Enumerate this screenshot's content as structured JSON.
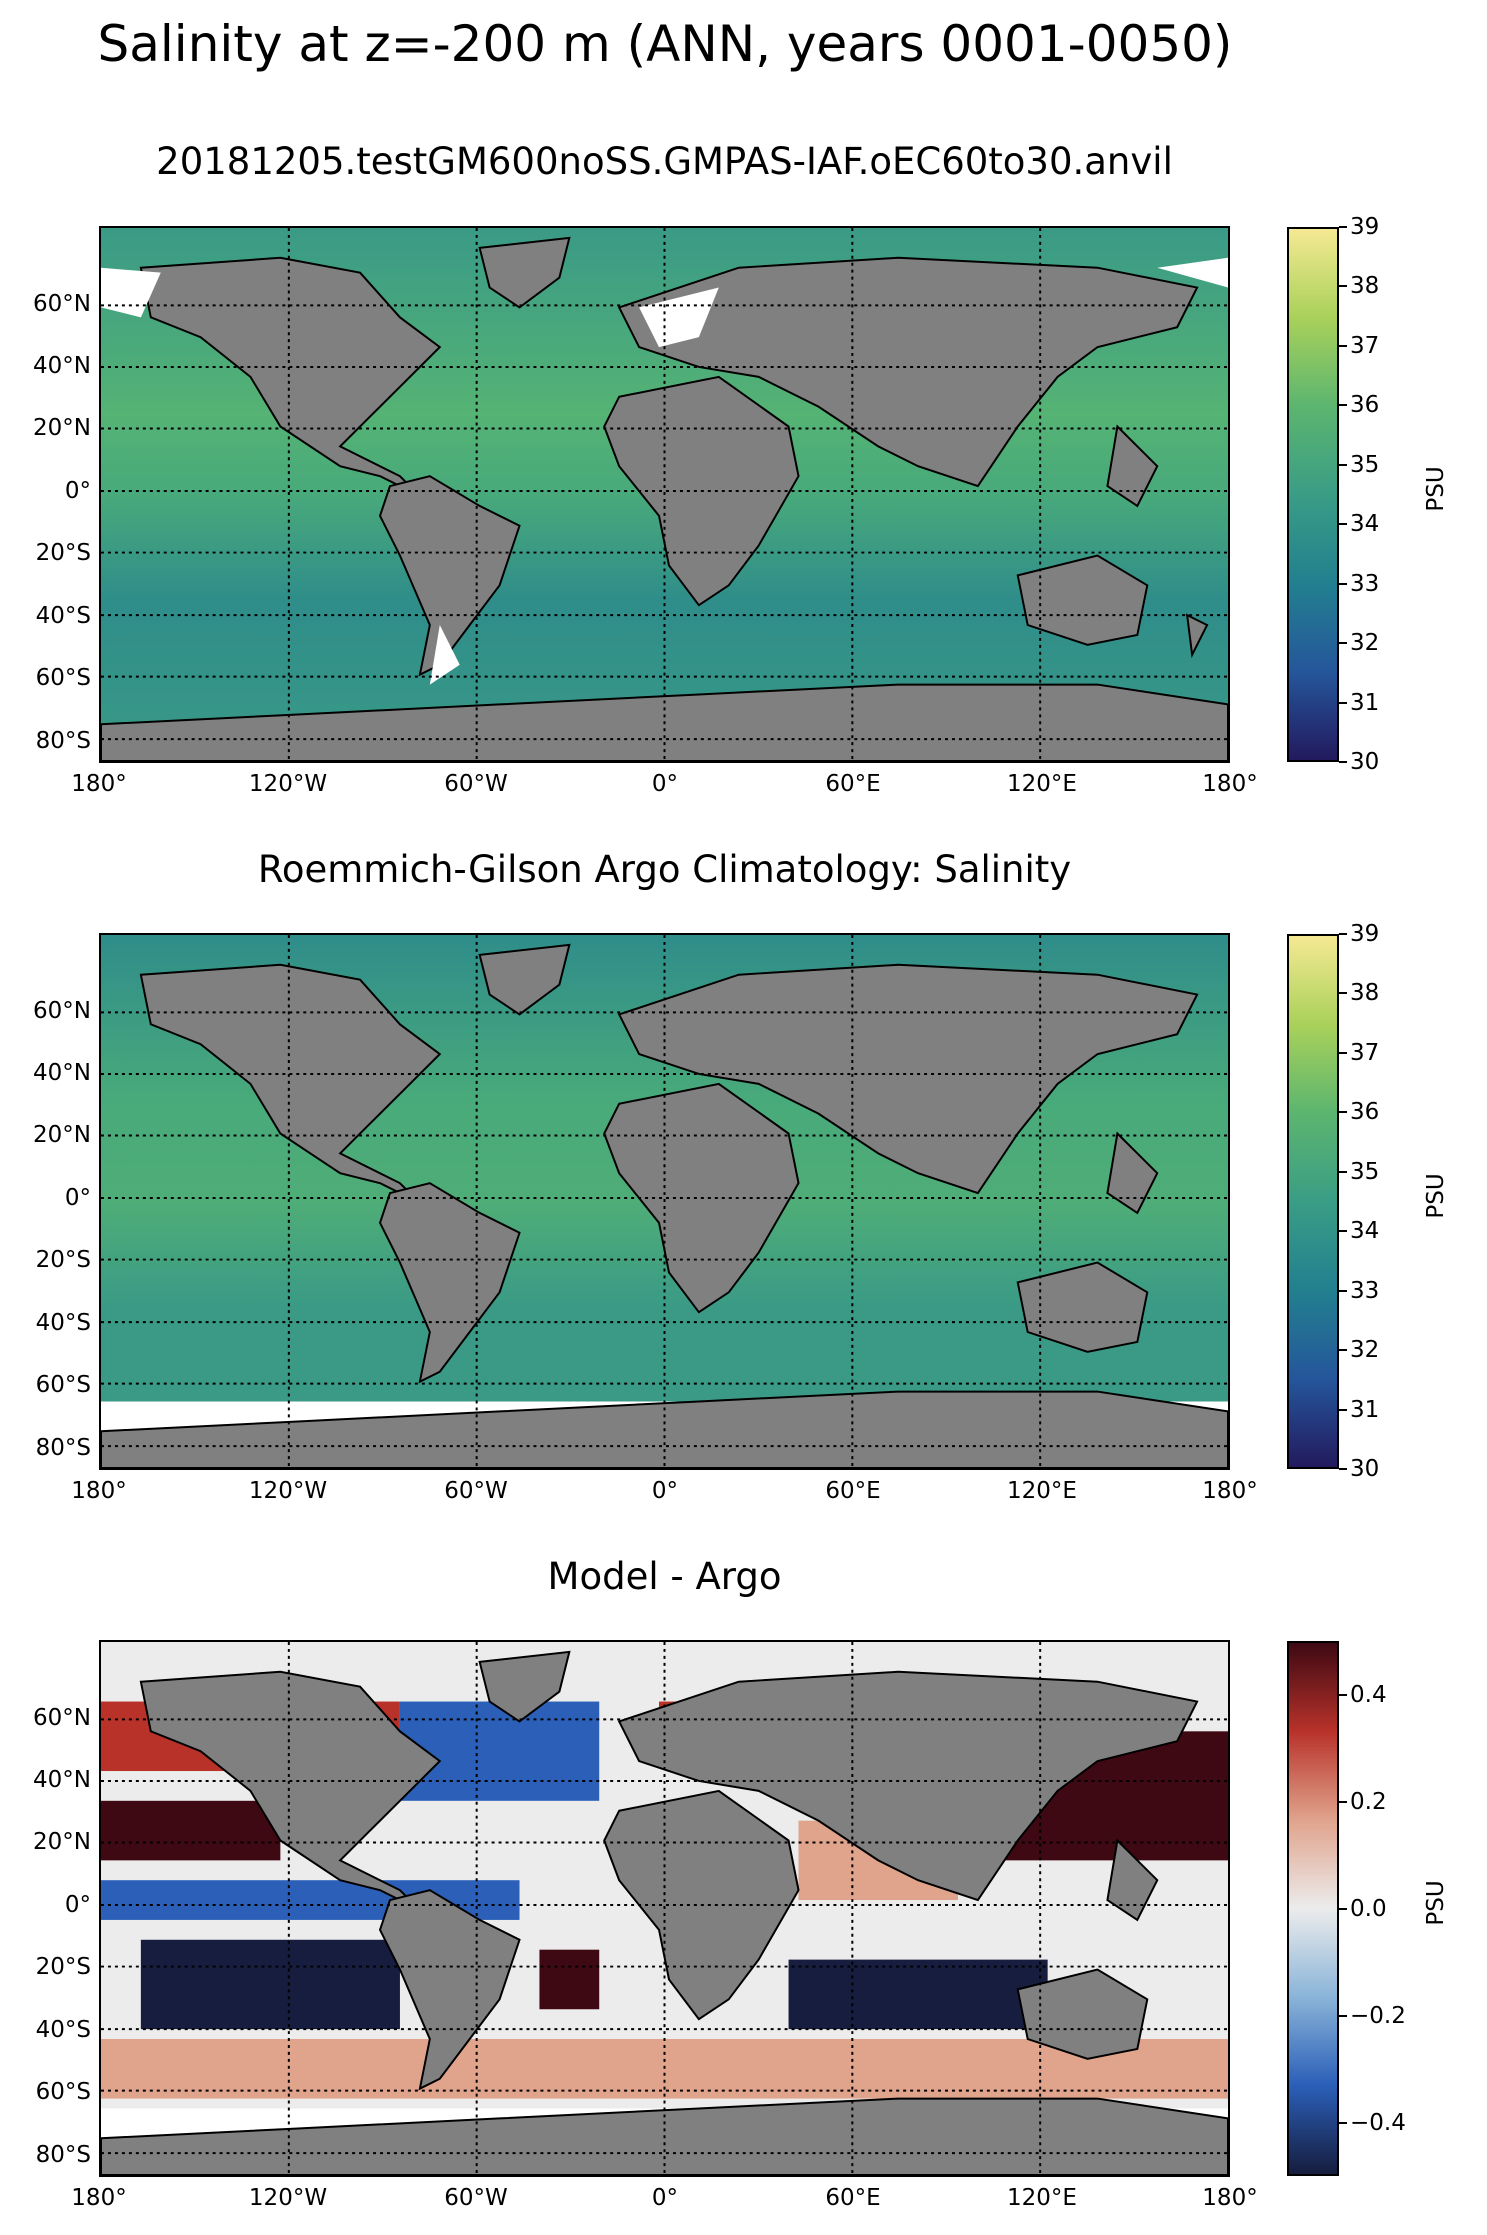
{
  "suptitle": "Salinity at z=-200 m (ANN, years 0001-0050)",
  "panels": [
    {
      "title": "20181205.testGM600noSS.GMPAS-IAF.oEC60to30.anvil",
      "colorbar": {
        "label": "PSU",
        "ticks": [
          "30",
          "31",
          "32",
          "33",
          "34",
          "35",
          "36",
          "37",
          "38",
          "39"
        ],
        "min": 30,
        "max": 39,
        "colors": [
          "#231a5e",
          "#25569b",
          "#22808f",
          "#3a9d85",
          "#5cb56f",
          "#a9d15a",
          "#f5e993"
        ]
      }
    },
    {
      "title": "Roemmich-Gilson Argo Climatology: Salinity",
      "colorbar": {
        "label": "PSU",
        "ticks": [
          "30",
          "31",
          "32",
          "33",
          "34",
          "35",
          "36",
          "37",
          "38",
          "39"
        ],
        "min": 30,
        "max": 39,
        "colors": [
          "#231a5e",
          "#25569b",
          "#22808f",
          "#3a9d85",
          "#5cb56f",
          "#a9d15a",
          "#f5e993"
        ]
      }
    },
    {
      "title": "Model - Argo",
      "colorbar": {
        "label": "PSU",
        "ticks": [
          "−0.4",
          "−0.2",
          "0.0",
          "0.2",
          "0.4"
        ],
        "min": -0.5,
        "max": 0.5,
        "colors": [
          "#161d3e",
          "#2b5fb8",
          "#8ab4d8",
          "#ececec",
          "#e0a38c",
          "#b8322a",
          "#3e0913"
        ]
      }
    }
  ],
  "lat_labels": [
    "60°N",
    "40°N",
    "20°N",
    "0°",
    "20°S",
    "40°S",
    "60°S",
    "80°S"
  ],
  "lon_labels": [
    "180°",
    "120°W",
    "60°W",
    "0°",
    "60°E",
    "120°E",
    "180°"
  ],
  "land_color": "#808080"
}
